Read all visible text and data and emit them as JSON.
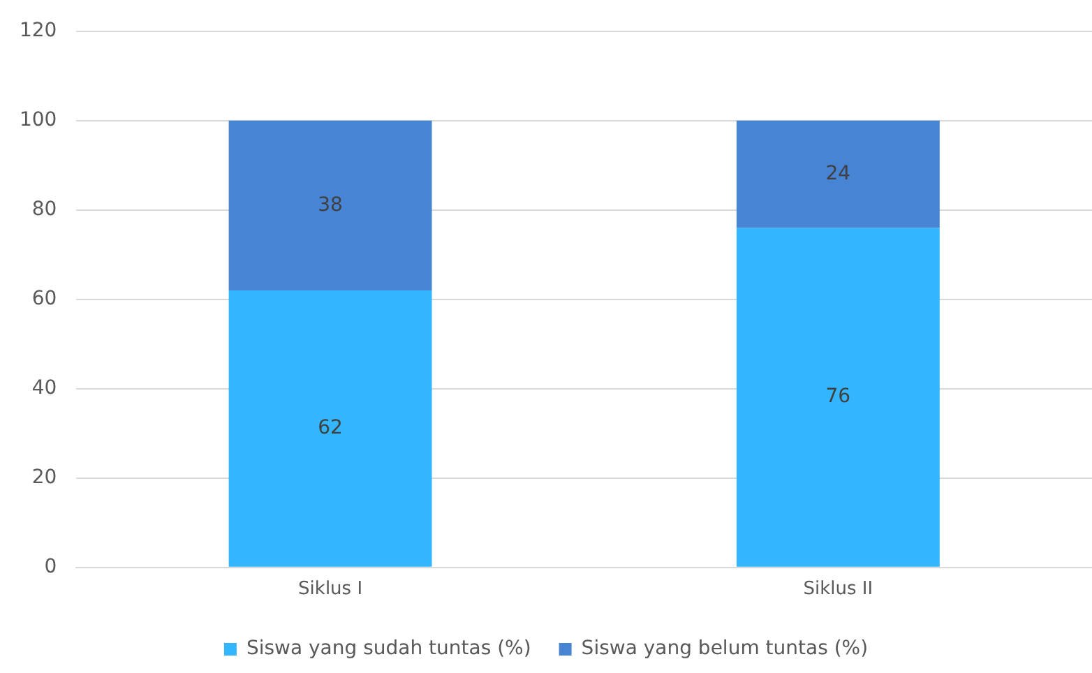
{
  "chart_data": {
    "type": "bar",
    "stacked": true,
    "categories": [
      "Siklus I",
      "Siklus II"
    ],
    "series": [
      {
        "name": "Siswa yang sudah tuntas (%)",
        "color": "#33b5ff",
        "values": [
          62,
          76
        ]
      },
      {
        "name": "Siswa yang belum tuntas (%)",
        "color": "#4784d4",
        "values": [
          38,
          24
        ]
      }
    ],
    "ylim": [
      0,
      120
    ],
    "yticks": [
      0,
      20,
      40,
      60,
      80,
      100,
      120
    ],
    "grid": "y",
    "legend": "bottom",
    "data_labels": true
  }
}
